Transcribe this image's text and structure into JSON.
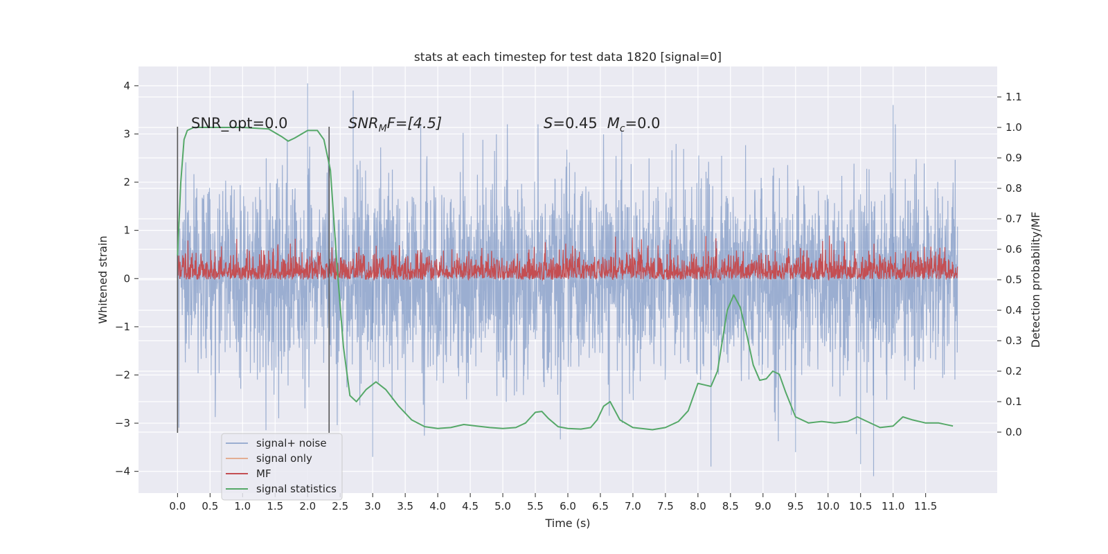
{
  "chart_data": {
    "type": "line",
    "title": "stats at each timestep for test data 1820 [signal=0]",
    "xlabel": "Time (s)",
    "ylabel": "Whitened strain",
    "y2label": "Detection probability/MF",
    "xlim": [
      -0.6,
      12.6
    ],
    "ylim": [
      -4.45,
      4.4
    ],
    "y2lim": [
      -0.2,
      1.2
    ],
    "xticks": [
      0.0,
      0.5,
      1.0,
      1.5,
      2.0,
      2.5,
      3.0,
      3.5,
      4.0,
      4.5,
      5.0,
      5.5,
      6.0,
      6.5,
      7.0,
      7.5,
      8.0,
      8.5,
      9.0,
      9.5,
      10.0,
      10.5,
      11.0,
      11.5
    ],
    "xtick_labels": [
      "0.0",
      "0.5",
      "1.0",
      "1.5",
      "2.0",
      "2.5",
      "3.0",
      "3.5",
      "4.0",
      "4.5",
      "5.0",
      "5.5",
      "6.0",
      "6.5",
      "7.0",
      "7.5",
      "8.0",
      "8.5",
      "9.0",
      "9.5",
      "10.0",
      "10.5",
      "11.0",
      "11.5"
    ],
    "yticks": [
      -4,
      -3,
      -2,
      -1,
      0,
      1,
      2,
      3,
      4
    ],
    "ytick_labels": [
      "−4",
      "−3",
      "−2",
      "−1",
      "0",
      "1",
      "2",
      "3",
      "4"
    ],
    "y2ticks": [
      0.0,
      0.1,
      0.2,
      0.3,
      0.4,
      0.5,
      0.6,
      0.7,
      0.8,
      0.9,
      1.0,
      1.1
    ],
    "y2tick_labels": [
      "0.0",
      "0.1",
      "0.2",
      "0.3",
      "0.4",
      "0.5",
      "0.6",
      "0.7",
      "0.8",
      "0.9",
      "1.0",
      "1.1"
    ],
    "grid": true,
    "legend_position": "lower-left",
    "series": [
      {
        "name": "signal+ noise",
        "color": "#4c72b0",
        "axis": "left",
        "t_range": [
          0.0,
          11.99
        ],
        "band_typical": [
          -1.9,
          1.9
        ],
        "extremes": [
          -4.1,
          4.05
        ]
      },
      {
        "name": "signal only",
        "color": "#dd8452",
        "axis": "left",
        "values_note": ""
      },
      {
        "name": "MF",
        "color": "#c44e52",
        "axis": "right",
        "t_range": [
          0.0,
          11.99
        ],
        "band_typical": [
          0.5,
          0.59
        ]
      },
      {
        "name": "signal statistics",
        "color": "#55a868",
        "axis": "right",
        "t": [
          0.0,
          0.05,
          0.1,
          0.15,
          0.25,
          0.5,
          1.0,
          1.4,
          1.6,
          1.7,
          1.8,
          2.0,
          2.15,
          2.25,
          2.35,
          2.45,
          2.55,
          2.65,
          2.75,
          2.9,
          3.05,
          3.2,
          3.4,
          3.6,
          3.8,
          4.0,
          4.2,
          4.4,
          4.6,
          4.8,
          5.0,
          5.2,
          5.35,
          5.5,
          5.6,
          5.7,
          5.85,
          6.0,
          6.2,
          6.35,
          6.45,
          6.55,
          6.65,
          6.8,
          7.0,
          7.3,
          7.5,
          7.7,
          7.85,
          8.0,
          8.1,
          8.2,
          8.3,
          8.45,
          8.55,
          8.65,
          8.75,
          8.85,
          8.95,
          9.05,
          9.15,
          9.25,
          9.35,
          9.5,
          9.7,
          9.9,
          10.1,
          10.3,
          10.45,
          10.6,
          10.8,
          11.0,
          11.15,
          11.3,
          11.5,
          11.7,
          11.92
        ],
        "values": [
          0.58,
          0.82,
          0.96,
          0.99,
          1.0,
          1.0,
          1.0,
          0.995,
          0.97,
          0.955,
          0.965,
          0.99,
          0.99,
          0.96,
          0.86,
          0.55,
          0.28,
          0.12,
          0.1,
          0.14,
          0.165,
          0.14,
          0.085,
          0.04,
          0.018,
          0.012,
          0.015,
          0.025,
          0.02,
          0.015,
          0.012,
          0.015,
          0.03,
          0.065,
          0.068,
          0.045,
          0.018,
          0.012,
          0.01,
          0.015,
          0.04,
          0.085,
          0.1,
          0.04,
          0.015,
          0.008,
          0.015,
          0.035,
          0.07,
          0.16,
          0.155,
          0.15,
          0.2,
          0.4,
          0.45,
          0.41,
          0.32,
          0.22,
          0.17,
          0.175,
          0.2,
          0.19,
          0.13,
          0.05,
          0.03,
          0.035,
          0.03,
          0.035,
          0.05,
          0.035,
          0.015,
          0.02,
          0.05,
          0.04,
          0.03,
          0.03,
          0.02
        ]
      }
    ],
    "vlines": [
      0.0,
      2.33
    ],
    "annotations": [
      {
        "text": "SNR_opt=0.0",
        "x": 0.2,
        "y": 3.1
      },
      {
        "text_main": "SNR",
        "text_sub": "M",
        "text_rest": "F=[4.5]",
        "italic": true,
        "x": 2.62,
        "y": 3.1
      },
      {
        "text_main": "S",
        "text_rest": "=0.45",
        "text_main2": "M",
        "text_sub2": "c",
        "text_rest2": "=0.0",
        "x": 5.6,
        "y": 3.1
      }
    ]
  }
}
